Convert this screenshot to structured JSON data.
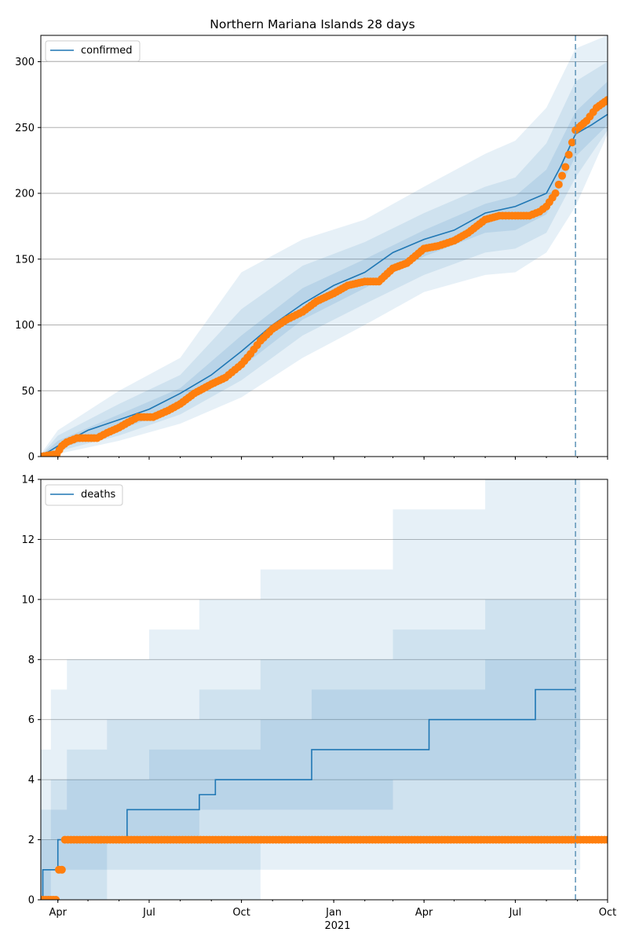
{
  "chart_data": [
    {
      "type": "line",
      "title": "Northern Mariana Islands 28 days",
      "legend": {
        "label": "confirmed",
        "placement": "top-left"
      },
      "grid": "horizontal",
      "xlim": [
        "2020-03-15",
        "2021-10-01"
      ],
      "ylim": [
        0,
        320
      ],
      "yticks": [
        0,
        50,
        100,
        150,
        200,
        250,
        300
      ],
      "forecast_start": "2021-08-30",
      "colors": {
        "line": "#1f77b4",
        "points": "#ff7f0e",
        "band": "#1f77b4",
        "vline": "#6699bb"
      },
      "median_line": {
        "x": [
          "2020-03-15",
          "2020-04-01",
          "2020-05-01",
          "2020-06-01",
          "2020-07-01",
          "2020-08-01",
          "2020-09-01",
          "2020-10-01",
          "2020-11-01",
          "2020-12-01",
          "2021-01-01",
          "2021-02-01",
          "2021-03-01",
          "2021-04-01",
          "2021-05-01",
          "2021-06-01",
          "2021-07-01",
          "2021-08-01",
          "2021-08-15",
          "2021-08-30",
          "2021-09-15",
          "2021-10-01"
        ],
        "y": [
          0,
          8,
          20,
          28,
          36,
          48,
          62,
          80,
          100,
          116,
          130,
          140,
          155,
          165,
          172,
          185,
          190,
          200,
          220,
          245,
          252,
          260
        ]
      },
      "bands": [
        {
          "level": "outer",
          "x": [
            "2020-03-15",
            "2020-04-01",
            "2020-06-01",
            "2020-08-01",
            "2020-10-01",
            "2020-12-01",
            "2021-02-01",
            "2021-04-01",
            "2021-06-01",
            "2021-07-01",
            "2021-08-01",
            "2021-08-30",
            "2021-10-01"
          ],
          "lower": [
            0,
            2,
            12,
            25,
            45,
            75,
            100,
            125,
            138,
            140,
            155,
            190,
            245
          ],
          "upper": [
            2,
            20,
            50,
            75,
            140,
            165,
            180,
            205,
            230,
            240,
            265,
            310,
            320
          ]
        },
        {
          "level": "middle",
          "x": [
            "2020-03-15",
            "2020-04-01",
            "2020-06-01",
            "2020-08-01",
            "2020-10-01",
            "2020-12-01",
            "2021-02-01",
            "2021-04-01",
            "2021-06-01",
            "2021-07-01",
            "2021-08-01",
            "2021-08-30",
            "2021-10-01"
          ],
          "lower": [
            0,
            4,
            16,
            32,
            58,
            92,
            116,
            138,
            155,
            158,
            170,
            212,
            248
          ],
          "upper": [
            1,
            16,
            40,
            62,
            112,
            145,
            163,
            185,
            205,
            212,
            238,
            285,
            300
          ]
        },
        {
          "level": "inner",
          "x": [
            "2020-03-15",
            "2020-04-01",
            "2020-06-01",
            "2020-08-01",
            "2020-10-01",
            "2020-12-01",
            "2021-02-01",
            "2021-04-01",
            "2021-06-01",
            "2021-07-01",
            "2021-08-01",
            "2021-08-30",
            "2021-10-01"
          ],
          "lower": [
            0,
            6,
            20,
            38,
            68,
            104,
            128,
            152,
            170,
            172,
            184,
            228,
            252
          ],
          "upper": [
            0.5,
            12,
            32,
            52,
            92,
            128,
            150,
            172,
            192,
            198,
            218,
            262,
            285
          ]
        }
      ],
      "observed": {
        "x": [
          "2020-03-15",
          "2020-03-31",
          "2020-04-05",
          "2020-04-10",
          "2020-04-20",
          "2020-05-10",
          "2020-05-20",
          "2020-06-01",
          "2020-06-10",
          "2020-06-20",
          "2020-07-05",
          "2020-07-20",
          "2020-08-01",
          "2020-08-15",
          "2020-09-01",
          "2020-09-15",
          "2020-10-01",
          "2020-10-10",
          "2020-10-20",
          "2020-11-01",
          "2020-11-15",
          "2020-12-01",
          "2020-12-15",
          "2021-01-01",
          "2021-01-15",
          "2021-02-01",
          "2021-02-15",
          "2021-03-01",
          "2021-03-15",
          "2021-04-01",
          "2021-04-15",
          "2021-05-01",
          "2021-05-15",
          "2021-06-01",
          "2021-06-15",
          "2021-07-01",
          "2021-07-15",
          "2021-07-25",
          "2021-08-01",
          "2021-08-10",
          "2021-08-20",
          "2021-08-30",
          "2021-09-10",
          "2021-09-20",
          "2021-10-01"
        ],
        "y": [
          0,
          2,
          8,
          11,
          14,
          14,
          18,
          22,
          26,
          30,
          30,
          35,
          40,
          48,
          55,
          60,
          70,
          78,
          88,
          97,
          104,
          110,
          118,
          124,
          130,
          133,
          133,
          143,
          147,
          158,
          160,
          164,
          170,
          180,
          183,
          183,
          183,
          186,
          190,
          200,
          220,
          248,
          255,
          265,
          271
        ]
      }
    },
    {
      "type": "line",
      "title": "",
      "legend": {
        "label": "deaths",
        "placement": "top-left"
      },
      "grid": "horizontal",
      "xlim": [
        "2020-03-15",
        "2021-10-01"
      ],
      "ylim": [
        0,
        14
      ],
      "yticks": [
        0,
        2,
        4,
        6,
        8,
        10,
        12,
        14
      ],
      "xticks": [
        {
          "date": "2020-04-01",
          "label": "Apr"
        },
        {
          "date": "2020-07-01",
          "label": "Jul"
        },
        {
          "date": "2020-10-01",
          "label": "Oct"
        },
        {
          "date": "2021-01-01",
          "label": "Jan"
        },
        {
          "date": "2021-04-01",
          "label": "Apr"
        },
        {
          "date": "2021-07-01",
          "label": "Jul"
        },
        {
          "date": "2021-10-01",
          "label": "Oct"
        }
      ],
      "xlabel_year": "2021",
      "forecast_start": "2021-08-30",
      "median_step": {
        "x": [
          "2020-03-15",
          "2020-03-17",
          "2020-03-25",
          "2020-04-01",
          "2020-05-14",
          "2020-06-09",
          "2020-06-22",
          "2020-08-20",
          "2020-09-05",
          "2020-10-15",
          "2020-12-10",
          "2021-02-10",
          "2021-04-06",
          "2021-06-15",
          "2021-07-21",
          "2021-08-30"
        ],
        "y": [
          0,
          1,
          1,
          2,
          2,
          3,
          3,
          3.5,
          4,
          4,
          5,
          5,
          6,
          6,
          7,
          7
        ]
      },
      "bands": [
        {
          "level": "outer",
          "x_steps": [
            "2020-03-15",
            "2020-03-25",
            "2020-04-10",
            "2020-05-20",
            "2020-07-01",
            "2020-08-20",
            "2020-10-20",
            "2020-12-10",
            "2021-03-01",
            "2021-06-01",
            "2021-08-30"
          ],
          "lower": [
            0,
            0,
            0,
            0,
            0,
            0,
            1,
            1,
            1,
            1,
            1
          ],
          "upper": [
            5,
            7,
            8,
            8,
            9,
            10,
            11,
            11,
            13,
            14,
            14
          ]
        },
        {
          "level": "middle",
          "x_steps": [
            "2020-03-15",
            "2020-03-25",
            "2020-04-10",
            "2020-05-20",
            "2020-07-01",
            "2020-08-20",
            "2020-10-20",
            "2020-12-10",
            "2021-03-01",
            "2021-06-01",
            "2021-08-30"
          ],
          "lower": [
            0,
            0,
            0,
            1,
            1,
            1,
            2,
            2,
            2,
            2,
            2
          ],
          "upper": [
            3,
            4,
            5,
            6,
            6,
            7,
            8,
            8,
            9,
            10,
            10
          ]
        },
        {
          "level": "inner",
          "x_steps": [
            "2020-03-15",
            "2020-03-25",
            "2020-04-10",
            "2020-05-20",
            "2020-07-01",
            "2020-08-20",
            "2020-10-20",
            "2020-12-10",
            "2021-03-01",
            "2021-06-01",
            "2021-08-30"
          ],
          "lower": [
            0,
            1,
            1,
            2,
            2,
            3,
            3,
            3,
            4,
            4,
            5
          ],
          "upper": [
            2,
            3,
            4,
            4,
            5,
            5,
            6,
            7,
            7,
            8,
            8
          ]
        }
      ],
      "observed": {
        "x": [
          "2020-03-15",
          "2020-03-20",
          "2020-03-25",
          "2020-03-30",
          "2020-04-02",
          "2020-04-05",
          "2020-04-08",
          "2021-10-01"
        ],
        "y": [
          0,
          0,
          0,
          0,
          1,
          1,
          2,
          2
        ]
      }
    }
  ]
}
